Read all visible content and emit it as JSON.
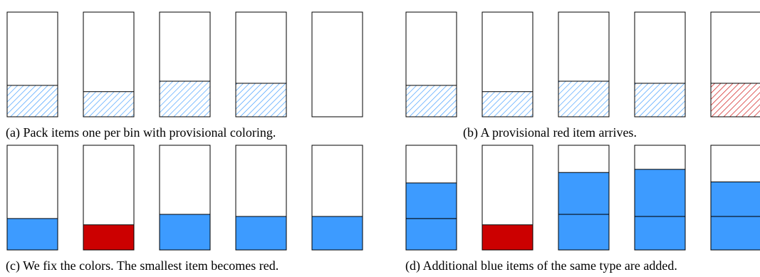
{
  "colors": {
    "blue": "#3d9bff",
    "red": "#cc0000",
    "hatch_blue": "#3d9bff",
    "hatch_red": "#cc0000",
    "outline": "#000000"
  },
  "bin_capacity": 1.0,
  "panels": [
    {
      "caption": "(a) Pack items one per bin with provisional coloring.",
      "bins": [
        [
          {
            "size": 0.3,
            "style": "hatch-blue"
          }
        ],
        [
          {
            "size": 0.24,
            "style": "hatch-blue"
          }
        ],
        [
          {
            "size": 0.34,
            "style": "hatch-blue"
          }
        ],
        [
          {
            "size": 0.32,
            "style": "hatch-blue"
          }
        ],
        []
      ]
    },
    {
      "caption": "(b) A provisional red item arrives.",
      "bins": [
        [
          {
            "size": 0.3,
            "style": "hatch-blue"
          }
        ],
        [
          {
            "size": 0.24,
            "style": "hatch-blue"
          }
        ],
        [
          {
            "size": 0.34,
            "style": "hatch-blue"
          }
        ],
        [
          {
            "size": 0.32,
            "style": "hatch-blue"
          }
        ],
        [
          {
            "size": 0.32,
            "style": "hatch-red"
          }
        ]
      ]
    },
    {
      "caption": "(c) We fix the colors. The smallest item becomes red.",
      "bins": [
        [
          {
            "size": 0.3,
            "style": "solid-blue"
          }
        ],
        [
          {
            "size": 0.24,
            "style": "solid-red"
          }
        ],
        [
          {
            "size": 0.34,
            "style": "solid-blue"
          }
        ],
        [
          {
            "size": 0.32,
            "style": "solid-blue"
          }
        ],
        [
          {
            "size": 0.32,
            "style": "solid-blue"
          }
        ]
      ]
    },
    {
      "caption": "(d) Additional blue items of the same type are added.",
      "bins": [
        [
          {
            "size": 0.3,
            "style": "solid-blue"
          },
          {
            "size": 0.34,
            "style": "solid-blue"
          }
        ],
        [
          {
            "size": 0.24,
            "style": "solid-red"
          }
        ],
        [
          {
            "size": 0.34,
            "style": "solid-blue"
          },
          {
            "size": 0.4,
            "style": "solid-blue"
          }
        ],
        [
          {
            "size": 0.32,
            "style": "solid-blue"
          },
          {
            "size": 0.45,
            "style": "solid-blue"
          }
        ],
        [
          {
            "size": 0.32,
            "style": "solid-blue"
          },
          {
            "size": 0.33,
            "style": "solid-blue"
          }
        ]
      ]
    }
  ]
}
